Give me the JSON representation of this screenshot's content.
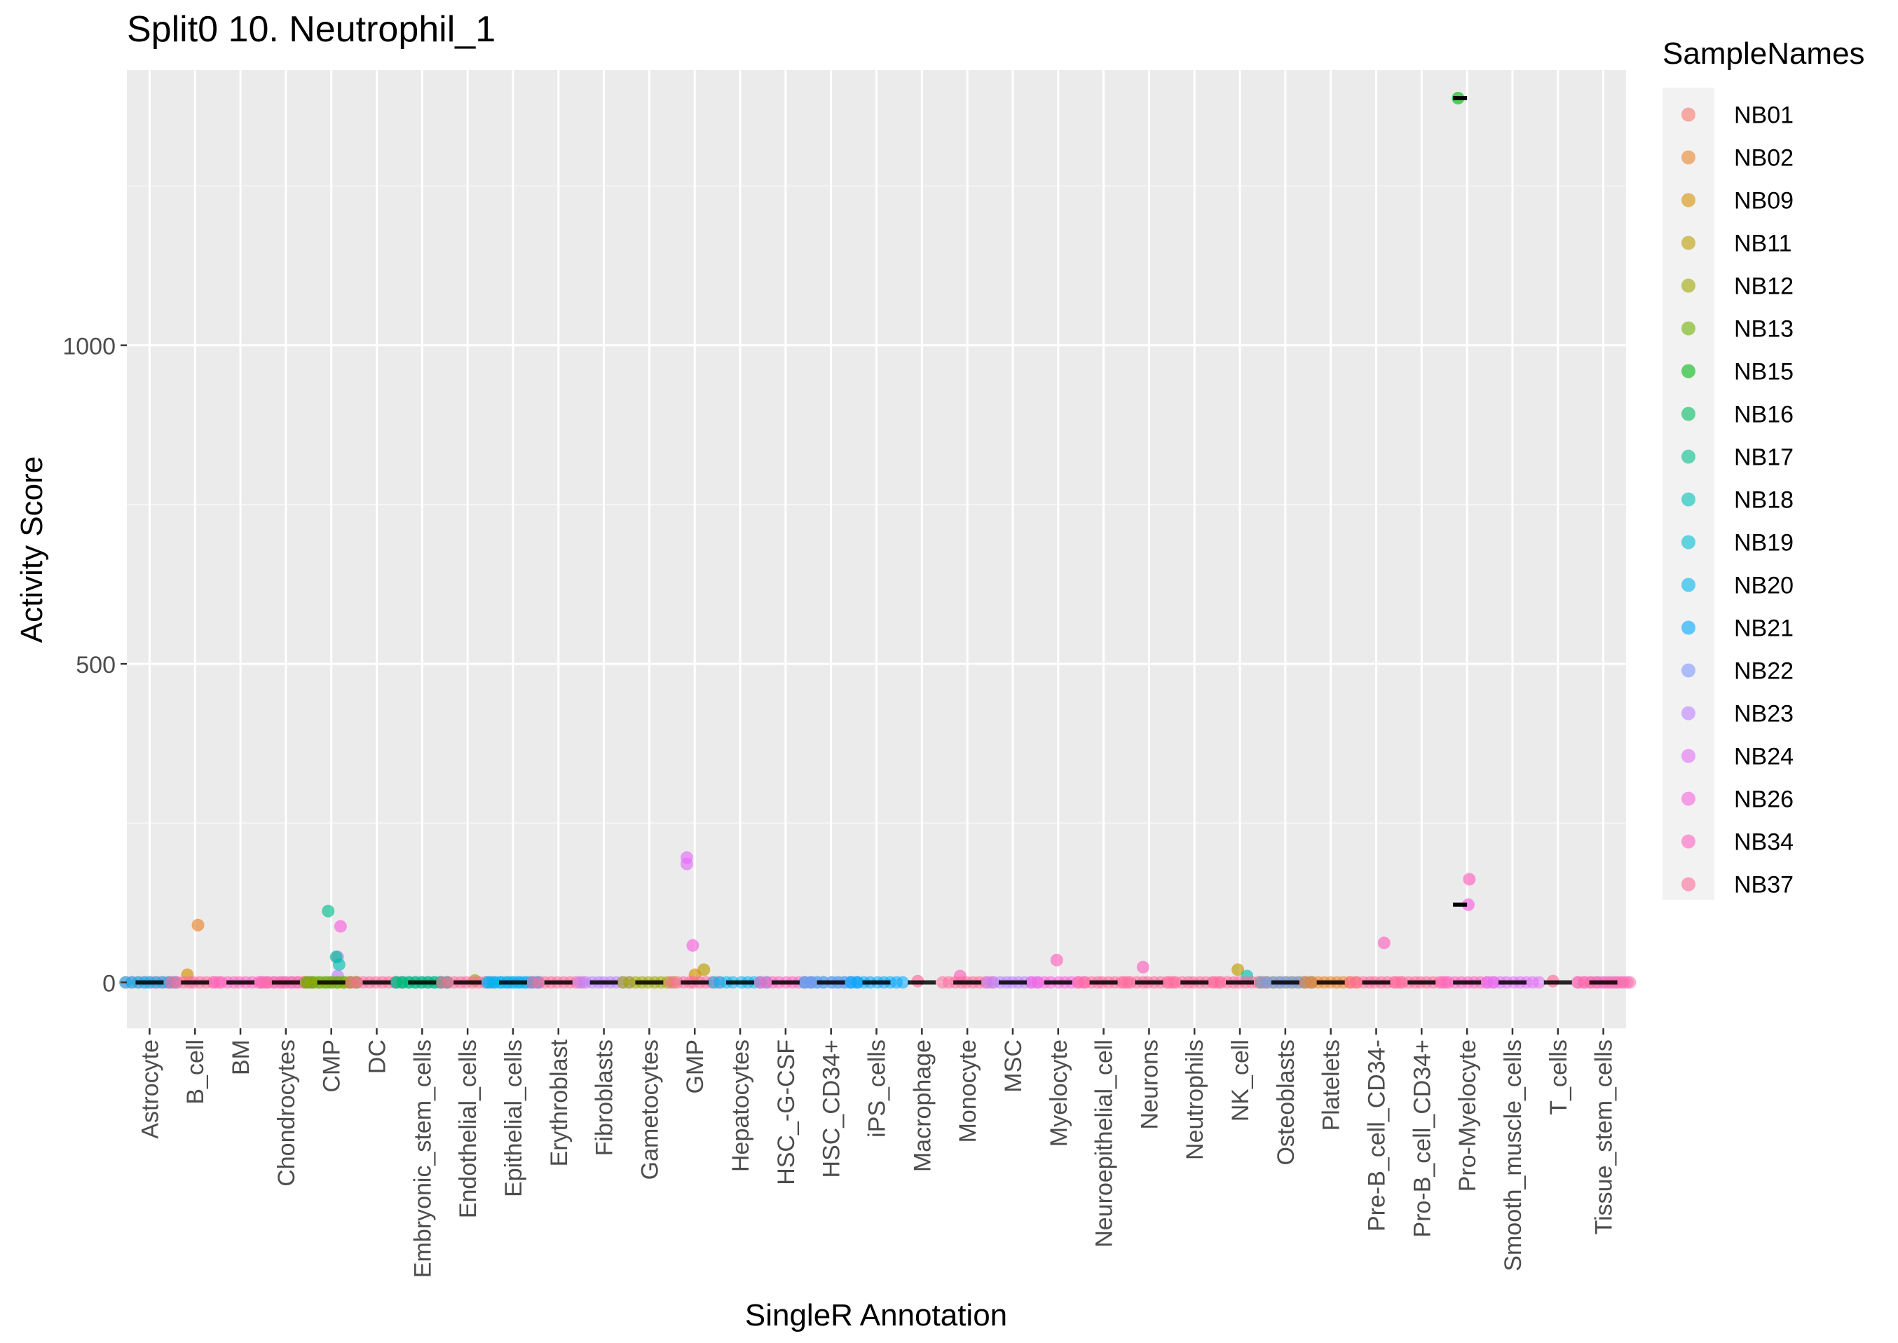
{
  "chart_data": {
    "type": "scatter",
    "title": "Split0 10. Neutrophil_1",
    "xlabel": "SingleR Annotation",
    "ylabel": "Activity Score",
    "ylim": [
      -72,
      1432
    ],
    "yticks": [
      0,
      500,
      1000
    ],
    "grid": true,
    "legend": {
      "title": "SampleNames",
      "position": "right",
      "entries": [
        "NB01",
        "NB02",
        "NB09",
        "NB11",
        "NB12",
        "NB13",
        "NB15",
        "NB16",
        "NB17",
        "NB18",
        "NB19",
        "NB20",
        "NB21",
        "NB22",
        "NB23",
        "NB24",
        "NB26",
        "NB34",
        "NB37"
      ]
    },
    "colors": {
      "NB01": "#F8766D",
      "NB02": "#E9842C",
      "NB09": "#D69100",
      "NB11": "#BC9D00",
      "NB12": "#9CA700",
      "NB13": "#6FB000",
      "NB15": "#00B813",
      "NB16": "#00BD61",
      "NB17": "#00C08E",
      "NB18": "#00C0B4",
      "NB19": "#00BDD4",
      "NB20": "#00B5EE",
      "NB21": "#00A7FF",
      "NB22": "#7F96FF",
      "NB23": "#BC81FF",
      "NB24": "#E26EF7",
      "NB26": "#F863DF",
      "NB34": "#FF62BF",
      "NB37": "#FF6A9A"
    },
    "categories": [
      "Astrocyte",
      "B_cell",
      "BM",
      "Chondrocytes",
      "CMP",
      "DC",
      "Embryonic_stem_cells",
      "Endothelial_cells",
      "Epithelial_cells",
      "Erythroblast",
      "Fibroblasts",
      "Gametocytes",
      "GMP",
      "Hepatocytes",
      "HSC_-G-CSF",
      "HSC_CD34+",
      "iPS_cells",
      "Macrophage",
      "Monocyte",
      "MSC",
      "Myelocyte",
      "Neuroepithelial_cell",
      "Neurons",
      "Neutrophils",
      "NK_cell",
      "Osteoblasts",
      "Platelets",
      "Pre-B_cell_CD34-",
      "Pro-B_cell_CD34+",
      "Pro-Myelocyte",
      "Smooth_muscle_cells",
      "T_cells",
      "Tissue_stem_cells"
    ],
    "points": [
      {
        "category": "Astrocyte",
        "sample": "NB37",
        "y": 0
      },
      {
        "category": "Astrocyte",
        "sample": "NB20",
        "y": 0
      },
      {
        "category": "B_cell",
        "sample": "NB02",
        "y": 90
      },
      {
        "category": "B_cell",
        "sample": "NB09",
        "y": 12
      },
      {
        "category": "B_cell",
        "sample": "NB37",
        "y": 0
      },
      {
        "category": "BM",
        "sample": "NB34",
        "y": 0
      },
      {
        "category": "Chondrocytes",
        "sample": "NB24",
        "y": 0
      },
      {
        "category": "Chondrocytes",
        "sample": "NB37",
        "y": 0
      },
      {
        "category": "CMP",
        "sample": "NB17",
        "y": 112
      },
      {
        "category": "CMP",
        "sample": "NB26",
        "y": 88
      },
      {
        "category": "CMP",
        "sample": "NB23",
        "y": 40
      },
      {
        "category": "CMP",
        "sample": "NB17",
        "y": 40
      },
      {
        "category": "CMP",
        "sample": "NB18",
        "y": 28
      },
      {
        "category": "CMP",
        "sample": "NB23",
        "y": 10
      },
      {
        "category": "CMP",
        "sample": "NB15",
        "y": 0
      },
      {
        "category": "CMP",
        "sample": "NB12",
        "y": 0
      },
      {
        "category": "DC",
        "sample": "NB37",
        "y": 0
      },
      {
        "category": "Embryonic_stem_cells",
        "sample": "NB20",
        "y": 0
      },
      {
        "category": "Embryonic_stem_cells",
        "sample": "NB16",
        "y": 0
      },
      {
        "category": "Endothelial_cells",
        "sample": "NB12",
        "y": 3
      },
      {
        "category": "Endothelial_cells",
        "sample": "NB37",
        "y": 0
      },
      {
        "category": "Epithelial_cells",
        "sample": "NB21",
        "y": 0
      },
      {
        "category": "Epithelial_cells",
        "sample": "NB20",
        "y": 0
      },
      {
        "category": "Erythroblast",
        "sample": "NB37",
        "y": 0
      },
      {
        "category": "Fibroblasts",
        "sample": "NB23",
        "y": 0
      },
      {
        "category": "Gametocytes",
        "sample": "NB12",
        "y": 0
      },
      {
        "category": "GMP",
        "sample": "NB24",
        "y": 196
      },
      {
        "category": "GMP",
        "sample": "NB24",
        "y": 186
      },
      {
        "category": "GMP",
        "sample": "NB26",
        "y": 58
      },
      {
        "category": "GMP",
        "sample": "NB11",
        "y": 20
      },
      {
        "category": "GMP",
        "sample": "NB09",
        "y": 12
      },
      {
        "category": "GMP",
        "sample": "NB37",
        "y": 0
      },
      {
        "category": "Hepatocytes",
        "sample": "NB20",
        "y": 0
      },
      {
        "category": "HSC_-G-CSF",
        "sample": "NB34",
        "y": 0
      },
      {
        "category": "HSC_CD34+",
        "sample": "NB18",
        "y": 0
      },
      {
        "category": "HSC_CD34+",
        "sample": "NB22",
        "y": 0
      },
      {
        "category": "iPS_cells",
        "sample": "NB21",
        "y": 0
      },
      {
        "category": "Macrophage",
        "sample": "NB37",
        "y": 2
      },
      {
        "category": "Monocyte",
        "sample": "NB34",
        "y": 10
      },
      {
        "category": "Monocyte",
        "sample": "NB37",
        "y": 0
      },
      {
        "category": "MSC",
        "sample": "NB23",
        "y": 0
      },
      {
        "category": "Myelocyte",
        "sample": "NB34",
        "y": 35
      },
      {
        "category": "Myelocyte",
        "sample": "NB26",
        "y": 0
      },
      {
        "category": "Neuroepithelial_cell",
        "sample": "NB37",
        "y": 0
      },
      {
        "category": "Neurons",
        "sample": "NB34",
        "y": 24
      },
      {
        "category": "Neurons",
        "sample": "NB37",
        "y": 0
      },
      {
        "category": "Neutrophils",
        "sample": "NB37",
        "y": 0
      },
      {
        "category": "NK_cell",
        "sample": "NB11",
        "y": 20
      },
      {
        "category": "NK_cell",
        "sample": "NB18",
        "y": 10
      },
      {
        "category": "NK_cell",
        "sample": "NB37",
        "y": 0
      },
      {
        "category": "Osteoblasts",
        "sample": "NB12",
        "y": 0
      },
      {
        "category": "Osteoblasts",
        "sample": "NB22",
        "y": 0
      },
      {
        "category": "Platelets",
        "sample": "NB02",
        "y": 0
      },
      {
        "category": "Pre-B_cell_CD34-",
        "sample": "NB34",
        "y": 62
      },
      {
        "category": "Pre-B_cell_CD34-",
        "sample": "NB37",
        "y": 0
      },
      {
        "category": "Pro-B_cell_CD34+",
        "sample": "NB37",
        "y": 0
      },
      {
        "category": "Pro-Myelocyte",
        "sample": "NB15",
        "y": 1388
      },
      {
        "category": "Pro-Myelocyte",
        "sample": "NB34",
        "y": 162
      },
      {
        "category": "Pro-Myelocyte",
        "sample": "NB26",
        "y": 122
      },
      {
        "category": "Pro-Myelocyte",
        "sample": "NB34",
        "y": 0
      },
      {
        "category": "Smooth_muscle_cells",
        "sample": "NB24",
        "y": 0
      },
      {
        "category": "T_cells",
        "sample": "NB37",
        "y": 2
      },
      {
        "category": "Tissue_stem_cells",
        "sample": "NB24",
        "y": 0
      },
      {
        "category": "Tissue_stem_cells",
        "sample": "NB37",
        "y": 0
      }
    ]
  }
}
